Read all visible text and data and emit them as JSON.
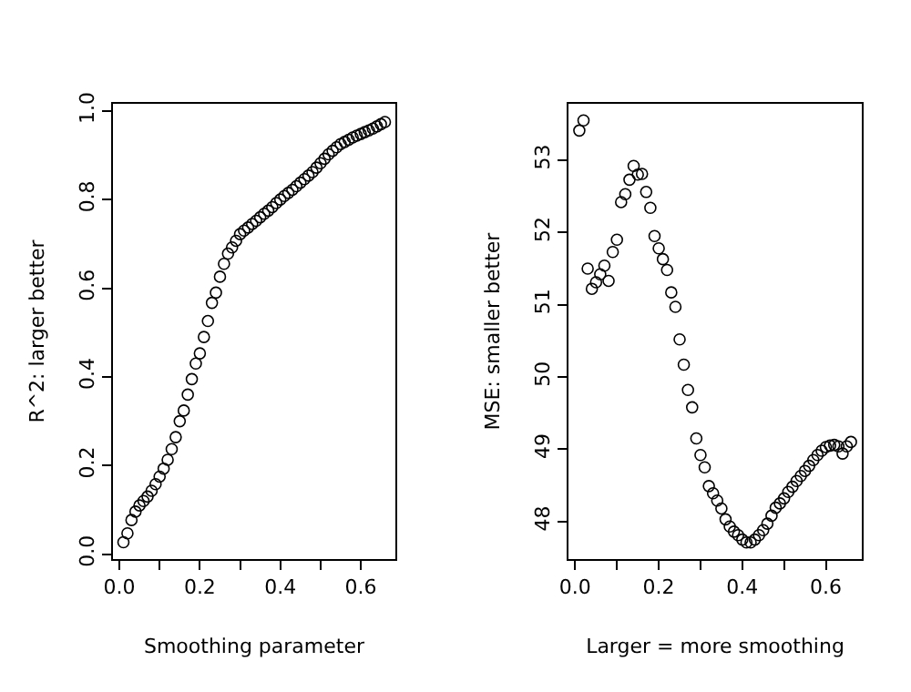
{
  "chart_data": [
    {
      "type": "scatter",
      "xlabel": "Smoothing parameter",
      "ylabel": "R^2: larger better",
      "marker": "circle",
      "x": [
        0.01,
        0.02,
        0.03,
        0.04,
        0.05,
        0.06,
        0.07,
        0.08,
        0.09,
        0.1,
        0.11,
        0.12,
        0.13,
        0.14,
        0.15,
        0.16,
        0.17,
        0.18,
        0.19,
        0.2,
        0.21,
        0.22,
        0.23,
        0.24,
        0.25,
        0.26,
        0.27,
        0.28,
        0.29,
        0.3,
        0.31,
        0.32,
        0.33,
        0.34,
        0.35,
        0.36,
        0.37,
        0.38,
        0.39,
        0.4,
        0.41,
        0.42,
        0.43,
        0.44,
        0.45,
        0.46,
        0.47,
        0.48,
        0.49,
        0.5,
        0.51,
        0.52,
        0.53,
        0.54,
        0.55,
        0.56,
        0.57,
        0.58,
        0.59,
        0.6,
        0.61,
        0.62,
        0.63,
        0.64,
        0.65,
        0.66
      ],
      "series": [
        {
          "color": "#000000",
          "values": [
            0.027,
            0.047,
            0.077,
            0.096,
            0.11,
            0.12,
            0.13,
            0.143,
            0.158,
            0.175,
            0.193,
            0.213,
            0.237,
            0.264,
            0.3,
            0.324,
            0.36,
            0.395,
            0.43,
            0.453,
            0.49,
            0.526,
            0.567,
            0.59,
            0.626,
            0.655,
            0.678,
            0.692,
            0.707,
            0.722,
            0.73,
            0.737,
            0.745,
            0.752,
            0.76,
            0.768,
            0.775,
            0.783,
            0.792,
            0.8,
            0.808,
            0.815,
            0.822,
            0.83,
            0.838,
            0.846,
            0.854,
            0.862,
            0.872,
            0.882,
            0.892,
            0.902,
            0.91,
            0.918,
            0.925,
            0.93,
            0.935,
            0.94,
            0.944,
            0.948,
            0.952,
            0.956,
            0.96,
            0.965,
            0.97,
            0.975
          ]
        }
      ],
      "xlim": [
        -0.016,
        0.686
      ],
      "ylim": [
        -0.011,
        1.016
      ],
      "xticks": [
        {
          "value": 0,
          "label": "0.0"
        },
        {
          "value": 0.1,
          "label": null
        },
        0.2,
        {
          "value": 0.3,
          "label": null
        },
        0.4,
        {
          "value": 0.5,
          "label": null
        },
        0.6
      ],
      "yticks": [
        {
          "value": 0,
          "label": "0.0"
        },
        0.2,
        0.4,
        0.6,
        0.8,
        {
          "value": 1,
          "label": "1.0"
        }
      ]
    },
    {
      "type": "scatter",
      "xlabel": "Larger = more smoothing",
      "ylabel": "MSE: smaller better",
      "marker": "circle",
      "x": [
        0.01,
        0.02,
        0.03,
        0.04,
        0.05,
        0.06,
        0.07,
        0.08,
        0.09,
        0.1,
        0.11,
        0.12,
        0.13,
        0.14,
        0.15,
        0.16,
        0.17,
        0.18,
        0.19,
        0.2,
        0.21,
        0.22,
        0.23,
        0.24,
        0.25,
        0.26,
        0.27,
        0.28,
        0.29,
        0.3,
        0.31,
        0.32,
        0.33,
        0.34,
        0.35,
        0.36,
        0.37,
        0.38,
        0.39,
        0.4,
        0.41,
        0.42,
        0.43,
        0.44,
        0.45,
        0.46,
        0.47,
        0.48,
        0.49,
        0.5,
        0.51,
        0.52,
        0.53,
        0.54,
        0.55,
        0.56,
        0.57,
        0.58,
        0.59,
        0.6,
        0.61,
        0.62,
        0.63,
        0.64,
        0.65,
        0.66
      ],
      "series": [
        {
          "color": "#000000",
          "values": [
            53.41,
            53.55,
            51.5,
            51.22,
            51.31,
            51.42,
            51.54,
            51.33,
            51.73,
            51.9,
            52.42,
            52.53,
            52.73,
            52.92,
            52.8,
            52.81,
            52.56,
            52.34,
            51.95,
            51.78,
            51.63,
            51.48,
            51.17,
            50.97,
            50.52,
            50.17,
            49.82,
            49.58,
            49.15,
            48.92,
            48.75,
            48.49,
            48.39,
            48.29,
            48.18,
            48.03,
            47.93,
            47.86,
            47.81,
            47.75,
            47.71,
            47.71,
            47.75,
            47.81,
            47.88,
            47.97,
            48.08,
            48.19,
            48.25,
            48.32,
            48.41,
            48.48,
            48.56,
            48.63,
            48.7,
            48.77,
            48.85,
            48.92,
            48.98,
            49.03,
            49.05,
            49.06,
            49.04,
            48.94,
            49.04,
            49.1
          ]
        }
      ],
      "xlim": [
        -0.016,
        0.686
      ],
      "ylim": [
        47.48,
        53.78
      ],
      "xticks": [
        {
          "value": 0,
          "label": "0.0"
        },
        {
          "value": 0.1,
          "label": null
        },
        0.2,
        {
          "value": 0.3,
          "label": null
        },
        0.4,
        {
          "value": 0.5,
          "label": null
        },
        0.6
      ],
      "yticks": [
        48,
        49,
        50,
        51,
        52,
        53
      ]
    }
  ]
}
